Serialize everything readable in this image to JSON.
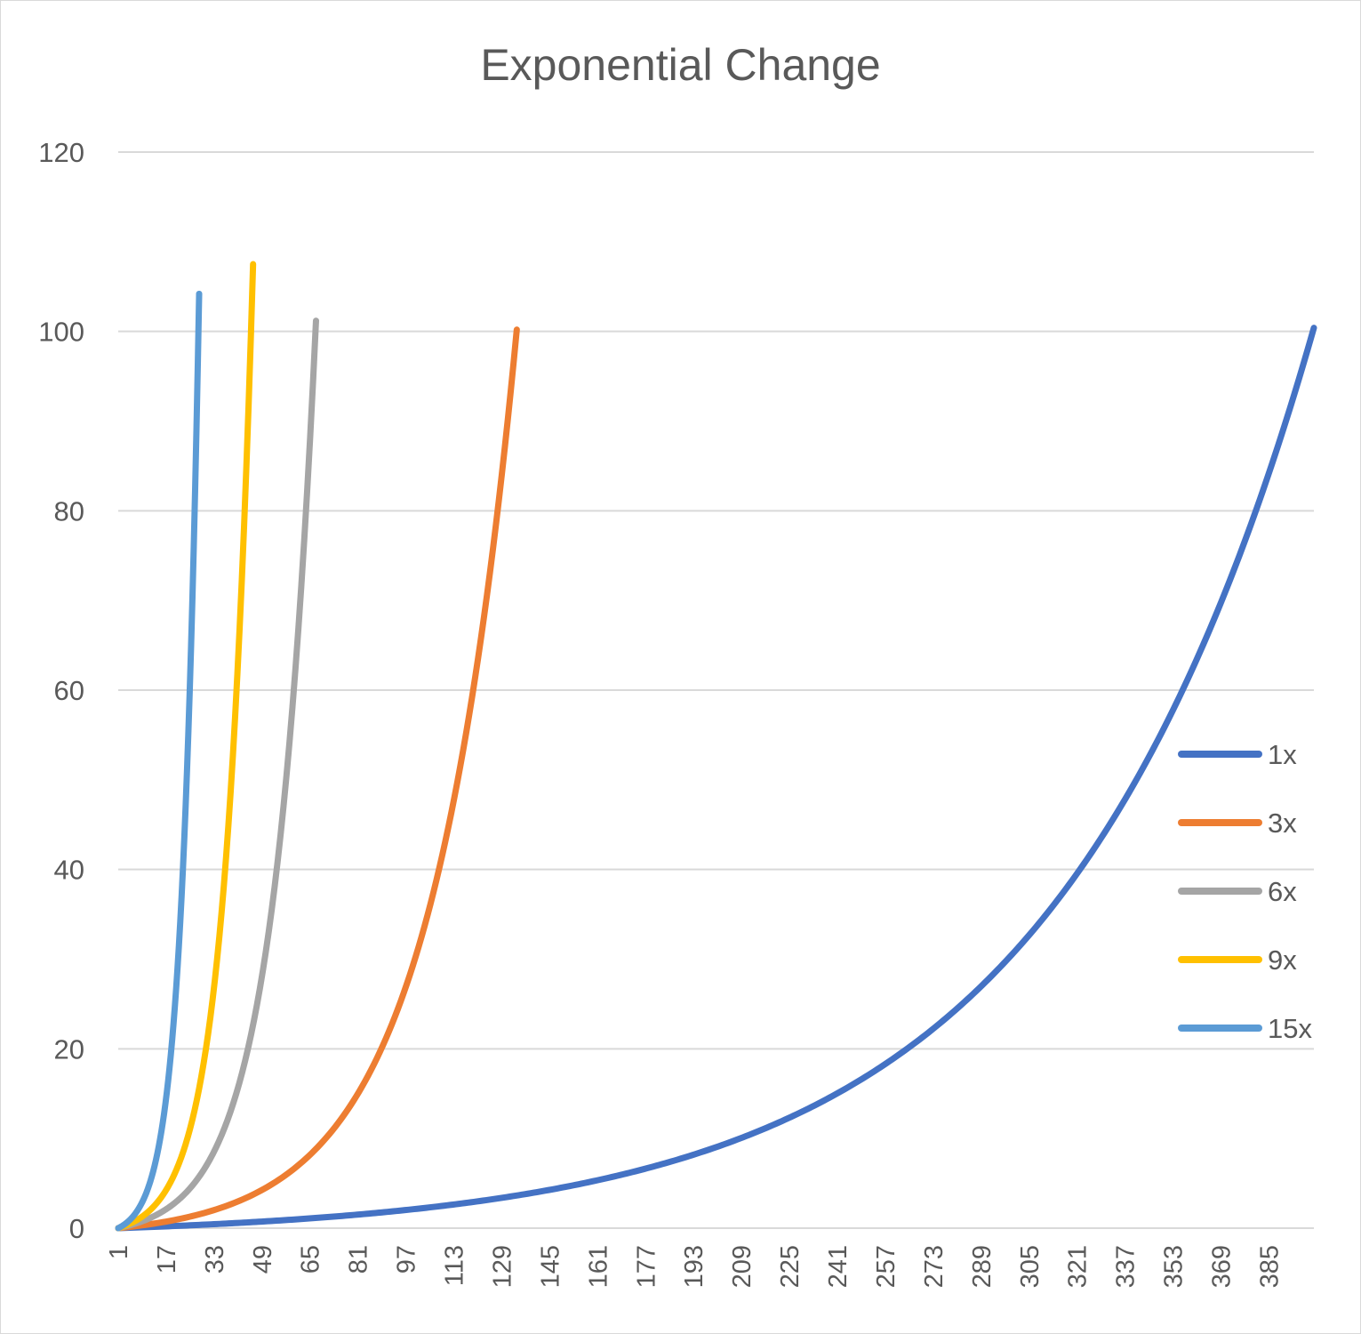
{
  "chart_data": {
    "type": "line",
    "title": "Exponential Change",
    "xlabel": "",
    "ylabel": "",
    "ylim": [
      0,
      120
    ],
    "yticks": [
      "0",
      "20",
      "40",
      "60",
      "80",
      "100",
      "120"
    ],
    "x_range": [
      1,
      400
    ],
    "xticks": [
      "1",
      "17",
      "33",
      "49",
      "65",
      "81",
      "97",
      "113",
      "129",
      "145",
      "161",
      "177",
      "193",
      "209",
      "225",
      "241",
      "257",
      "273",
      "289",
      "305",
      "321",
      "337",
      "353",
      "369",
      "385"
    ],
    "grid": "horizontal",
    "legend_position": "right",
    "series": [
      {
        "name": "1x",
        "color": "#4472c4",
        "end_x": 400,
        "end_y": 100.4,
        "growth_per_step": 0.0116
      },
      {
        "name": "3x",
        "color": "#ed7d31",
        "end_x": 134,
        "end_y": 100.2,
        "growth_per_step": 0.0348
      },
      {
        "name": "6x",
        "color": "#a5a5a5",
        "end_x": 67,
        "end_y": 101.2,
        "growth_per_step": 0.0696
      },
      {
        "name": "9x",
        "color": "#ffc000",
        "end_x": 46,
        "end_y": 107.5,
        "growth_per_step": 0.1044
      },
      {
        "name": "15x",
        "color": "#5b9bd5",
        "end_x": 28,
        "end_y": 104.2,
        "growth_per_step": 0.174
      }
    ]
  }
}
